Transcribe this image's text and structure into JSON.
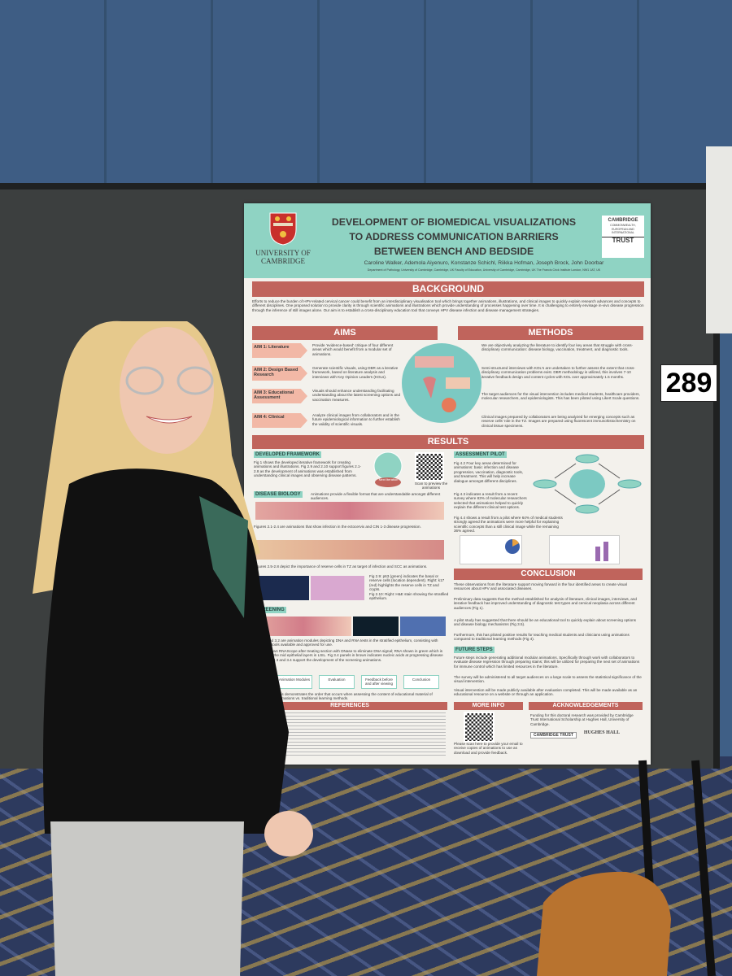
{
  "poster": {
    "university": [
      "UNIVERSITY OF",
      "CAMBRIDGE"
    ],
    "title": [
      "DEVELOPMENT OF BIOMEDICAL VISUALIZATIONS",
      "TO ADDRESS COMMUNICATION BARRIERS",
      "BETWEEN BENCH AND BEDSIDE"
    ],
    "authors": "Caroline Walker, Ademola Aiyenuro, Konstanze Schichl, Riikka Hofman, Joseph Brock, John Doorbar",
    "affiliations": "Department of Pathology, University of Cambridge, Cambridge, UK  Faculty of Education, University of Cambridge, Cambridge, UK  The Francis Crick Institute London, NW1 1AT, UK",
    "trust_logo": [
      "CAMBRIDGE",
      "COMMONWEALTH, EUROPEAN AND INTERNATIONAL",
      "TRUST"
    ],
    "background": {
      "heading": "BACKGROUND",
      "text": "Efforts to reduce the burden of HPV-related cervical cancer could benefit from an interdisciplinary visualisation tool which brings together animations, illustrations, and clinical images to quickly explain research advances and concepts to different disciplines. One proposed solution to provide clarity is through scientific animations and illustrations which provide understanding of processes happening over time. It is challenging to entirely envisage in-vivo disease progression through the inference of still images alone. Our aim is to establish a cross-disciplinary education tool that conveys HPV disease infection and disease management strategies."
    },
    "aims": {
      "heading": "AIMS",
      "items": [
        {
          "label": "AIM 1: Literature",
          "text": "Provide 'evidence-based' critique of four different areas which would benefit from a modular set of animations."
        },
        {
          "label": "AIM 2: Design Based Research",
          "text": "Generate scientific visuals, using DBR as a iterative framework, based on literature analysis and interviews with Key Opinion Leaders (KOLs)."
        },
        {
          "label": "AIM 3: Educational Assessment",
          "text": "Visuals should enhance understanding facilitating understanding about the latest screening options and vaccination measures."
        },
        {
          "label": "AIM 4: Clinical",
          "text": "Analyze clinical images from collaborators and in the future epidemiological information to further establish the validity of scientific visuals."
        }
      ]
    },
    "methods": {
      "heading": "METHODS",
      "paragraphs": [
        "We are objectively analyzing the literature to identify four key areas that struggle with cross-disciplinary communication: disease biology, vaccination, treatment, and diagnostic tools.",
        "Semi-structured interviews with KOL's are undertaken to further assess the extent that cross-disciplinary communication problems exist. DBR methodology is utilized, this involves 7-10 iterative feedback design and content cycles with KOL over approximately 1.5 months.",
        "The target audiences for the visual intervention includes medical students, healthcare providers, molecular researchers, and epidemiologists. This has been piloted using Likert Scale questions.",
        "Clinical images prepared by collaborators are being analyzed for emerging concepts such as reserve cells' role in the TZ. Images are prepared using fluorescent immunohistochemistry on clinical tissue specimens."
      ]
    },
    "results": {
      "heading": "RESULTS",
      "framework": {
        "heading": "DEVELOPED FRAMEWORK",
        "text": "Fig 1 shows the developed iterative framework for creating animations and illustrations. Fig 2.9 and 2.10 support figures 2.1-2.8 as the development of animations was established from understanding clinical images and observing disease patterns.",
        "cycle": "Next Iteration",
        "scan": "Scan to preview the animations"
      },
      "disease_biology": {
        "heading": "DISEASE BIOLOGY",
        "paragraphs": [
          "Animations provide a flexible format that are understandable amongst different audiences.",
          "Figures 2.1-2.4 are animations that show infection in the ectocervix and CIN 1-3 disease progression.",
          "Figures 2.5-2.8 depict the importance of reserve cells in TZ as target of infection and SCC as animations.",
          "Fig 2.9: p63 (green) indicates the basal or reserve cells (location dependent). Right: k17 (red) highlights the reserve cells in TZ and crypts.",
          "Fig 2.10: Right: H&E stain showing the stratified epithelium."
        ]
      },
      "screening": {
        "heading": "SCREENING",
        "paragraphs": [
          "Fig. 3.1 and 3.2 are animation modules depicting DNA and RNA tests in the stratified epithelium, consisting with diagnostic tools available and approved for use.",
          "Fig. 3.3 shows RNAScope after treating section with DNase to eliminate DNA signal; RNA shown in green which is amplified in the mid epithelial layers in LSIL. Fig 3.4 panels in brown indicates nucleic acids at progressing disease stages. Fig 3.3 and 3.4 support the development of the screening animations."
        ],
        "flow": [
          "Animation Modules",
          "Evaluation",
          "Feedback before and after viewing",
          "Conclusion"
        ],
        "flow_text": "This demonstrates the order that occurs when assessing the content of educational material of animations vs. traditional learning methods."
      },
      "references": "REFERENCES",
      "assessment": {
        "heading": "ASSESSMENT PILOT",
        "paragraphs": [
          "Fig 4.2 Four key areas determined for animations: basic infection and disease progression, vaccination, diagnostic tools, and treatment. This will help increase dialogue amongst different disciplines.",
          "Fig 4.3 indicates a result from a recent survey where 83% of molecular researchers selected that animations helped to quickly explain the different clinical test options.",
          "Fig 4.4 shows a result from a pilot where 64% of medical students strongly agreed the animations were more helpful for explaining scientific concepts than a still clinical image while the remaining 36% agreed."
        ]
      }
    },
    "conclusion": {
      "heading": "CONCLUSION",
      "paragraphs": [
        "These observations from the literature support moving forward in the four identified areas to create visual resources about HPV and associated diseases.",
        "Preliminary data suggests that the method established for analysis of literature, clinical images, interviews, and iterative feedback has improved understanding of diagnostic test types and cervical neoplasia across different audiences (Fig 1).",
        "A pilot study has suggested that there should be an educational tool to quickly explain about screening options and disease biology mechanisms (Fig 3.5).",
        "Furthermore, this has piloted positive results for teaching medical students and clinicians using animations compared to traditional learning methods (Fig 4)."
      ]
    },
    "future_steps": {
      "heading": "FUTURE STEPS",
      "paragraphs": [
        "Future steps include generating additional modular animations. Specifically through work with collaborators to evaluate disease regression through preparing stains; this will be utilized for preparing the next set of animations for immune control which has limited resources in the literature.",
        "The survey will be administered to all target audiences on a large scale to assess the statistical significance of the visual intervention.",
        "Visual intervention will be made publicly available after evaluation completed. This will be made available as an educational resource on a website or through an application."
      ]
    },
    "more_info": {
      "heading": "MORE INFO",
      "text": "Please scan here to provide your email to receive copies of animations to use as download and provide feedback."
    },
    "acknowledgements": {
      "heading": "ACKNOWLEDGEMENTS",
      "text": "Funding for this doctoral research was provided by Cambridge Trust International Scholarship at Hughes Hall, University of Cambridge.",
      "logos": [
        "CAMBRIDGE TRUST",
        "HUGHES HALL"
      ]
    }
  },
  "board_number": "289"
}
